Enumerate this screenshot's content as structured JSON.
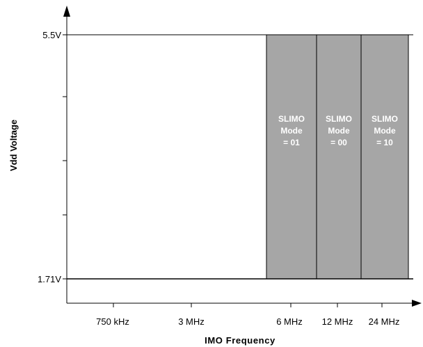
{
  "diagram": {
    "y_axis": {
      "label": "Vdd Voltage",
      "upper_label": "5.5V",
      "lower_label": "1.71V"
    },
    "x_axis": {
      "label": "IMO Frequency",
      "tick_labels": [
        "750 kHz",
        "3 MHz",
        "6 MHz",
        "12 MHz",
        "24 MHz"
      ]
    },
    "bands": [
      {
        "lines": [
          "SLIMO",
          "Mode",
          "= 01"
        ]
      },
      {
        "lines": [
          "SLIMO",
          "Mode",
          "= 00"
        ]
      },
      {
        "lines": [
          "SLIMO",
          "Mode",
          "= 10"
        ]
      }
    ],
    "colors": {
      "band_fill": "#a6a6a6",
      "band_text": "#ffffff",
      "lines": "#000000"
    }
  }
}
